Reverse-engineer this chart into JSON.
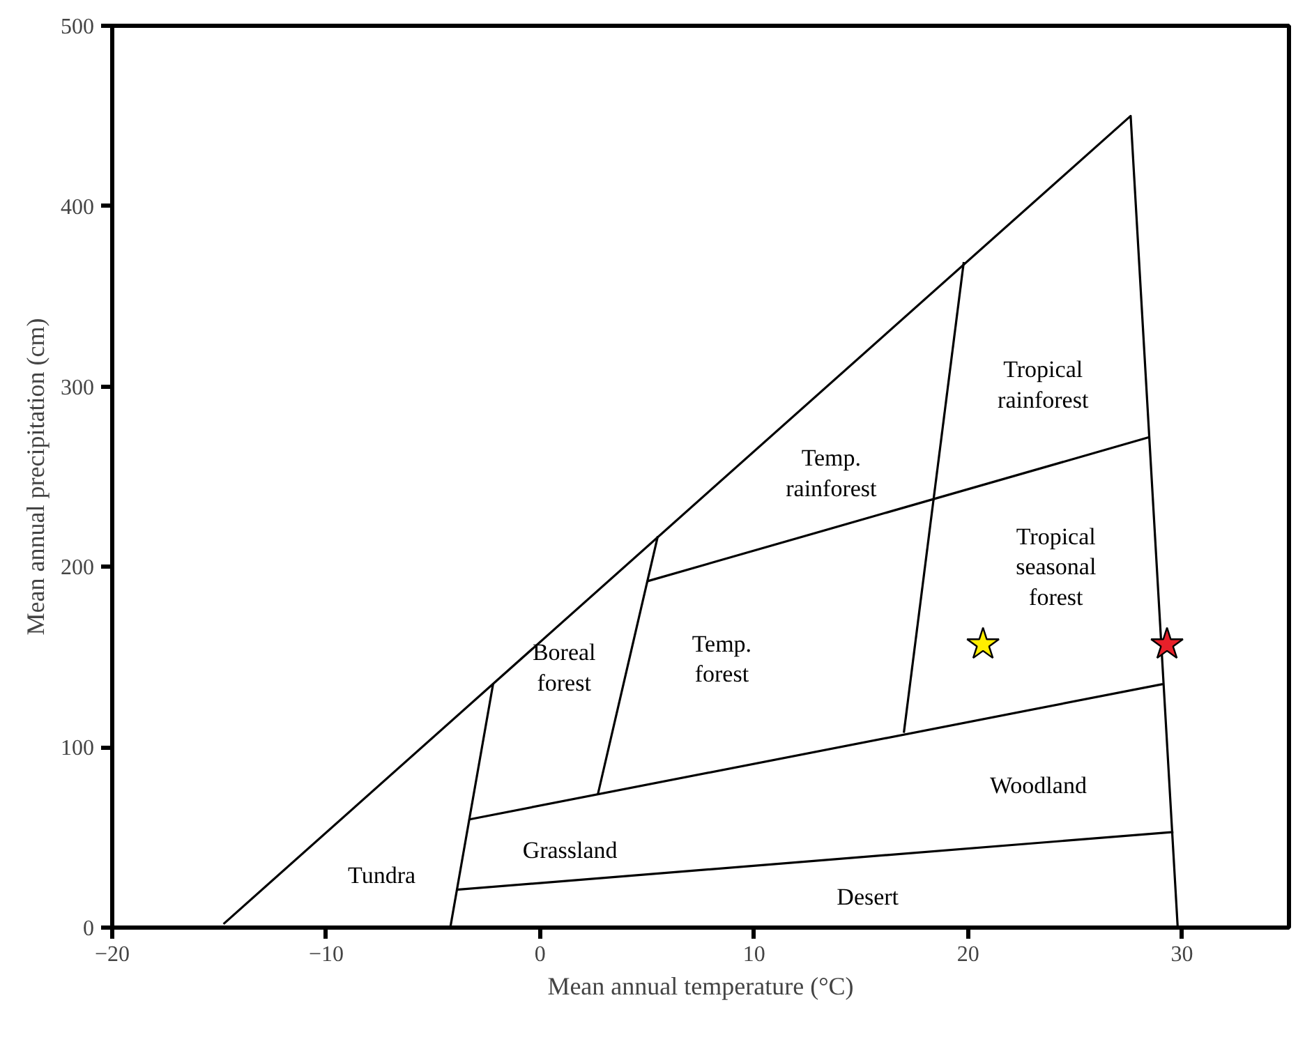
{
  "chart_data": {
    "type": "line",
    "xlabel": "Mean annual temperature (°C)",
    "ylabel": "Mean annual precipitation (cm)",
    "xlim": [
      -20,
      35
    ],
    "ylim": [
      0,
      500
    ],
    "xticks": [
      -20,
      -10,
      0,
      10,
      20,
      30
    ],
    "yticks": [
      0,
      100,
      200,
      300,
      400,
      500
    ],
    "grid": false,
    "marker": "none",
    "line_style": "solid",
    "series": [
      {
        "color": "#000000",
        "x": [
          -14.8,
          27.6,
          29.8
        ],
        "values": [
          2,
          450,
          0
        ]
      },
      {
        "color": "#000000",
        "x": [
          -4.2,
          -2.2
        ],
        "values": [
          0,
          135
        ]
      },
      {
        "color": "#000000",
        "x": [
          -3.9,
          29.6
        ],
        "values": [
          21,
          53
        ]
      },
      {
        "color": "#000000",
        "x": [
          -3.3,
          29.1
        ],
        "values": [
          60,
          135
        ]
      },
      {
        "color": "#000000",
        "x": [
          2.7,
          5.5
        ],
        "values": [
          74,
          217
        ]
      },
      {
        "color": "#000000",
        "x": [
          5.0,
          28.5
        ],
        "values": [
          192,
          272
        ]
      },
      {
        "color": "#000000",
        "x": [
          17.0,
          19.8
        ],
        "values": [
          108,
          369
        ]
      },
      {
        "type": "scatter",
        "marker": "star",
        "color": "#ffee00",
        "x": [
          20.7
        ],
        "values": [
          157
        ]
      },
      {
        "type": "scatter",
        "marker": "star",
        "color": "#e8202a",
        "x": [
          29.3
        ],
        "values": [
          157
        ]
      }
    ],
    "annotations": [
      "Tundra",
      "Grassland",
      "Desert",
      "Woodland",
      "Boreal\nforest",
      "Temp.\nforest",
      "Temp.\nrainforest",
      "Tropical\nseasonal\nforest",
      "Tropical\nrainforest"
    ]
  }
}
